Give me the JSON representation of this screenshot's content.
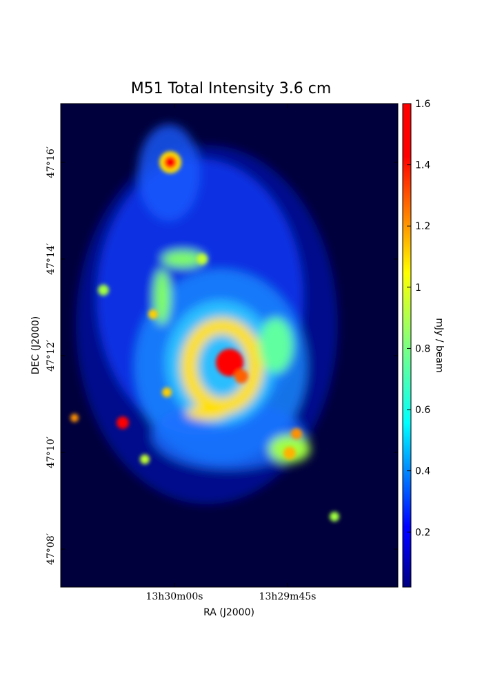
{
  "chart_data": {
    "type": "image",
    "title": "M51 Total Intensity 3.6 cm",
    "x_label": "RA (J2000)",
    "y_label": "DEC (J2000)",
    "colorbar_label": "mJy / beam",
    "colormap": "jet",
    "xlim": [
      13.50419,
      13.491769
    ],
    "xticks": [
      {
        "value": 13.5,
        "label": "13h30m00s"
      },
      {
        "value": 13.495833,
        "label": "13h29m45s"
      }
    ],
    "ylim": [
      47.12024,
      47.2869
    ],
    "yticks": [
      {
        "value": 47.133333,
        "label": "47°08′"
      },
      {
        "value": 47.166667,
        "label": "47°10′"
      },
      {
        "value": 47.2,
        "label": "47°12′"
      },
      {
        "value": 47.233333,
        "label": "47°14′"
      },
      {
        "value": 47.266667,
        "label": "47°16′"
      }
    ],
    "clim": [
      0.02,
      1.6
    ],
    "cticks": [
      0.2,
      0.4,
      0.6,
      0.8,
      1.0,
      1.2,
      1.4,
      1.6
    ]
  }
}
